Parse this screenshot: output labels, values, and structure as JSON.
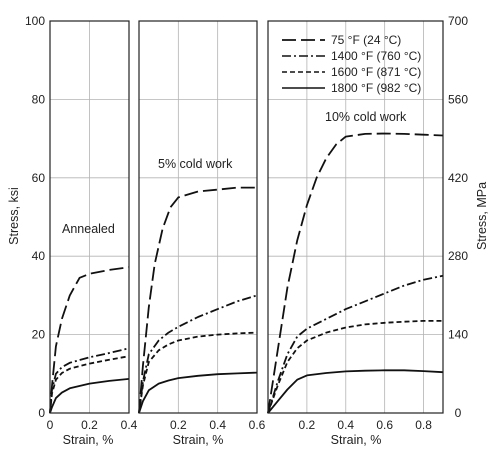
{
  "chart_data": {
    "type": "line",
    "ylabel_left": "Stress, ksi",
    "ylabel_right": "Stress, MPa",
    "y_ticks_left": [
      "0",
      "20",
      "40",
      "60",
      "80",
      "100"
    ],
    "y_ticks_right": [
      "0",
      "140",
      "280",
      "420",
      "560",
      "700"
    ],
    "ylim_ksi": [
      0,
      100
    ],
    "ylim_mpa": [
      0,
      700
    ],
    "grid": true,
    "legend_position": "top-right",
    "legend": [
      {
        "label": "75 °F (24 °C)",
        "style": "long-dash"
      },
      {
        "label": "1400 °F (760 °C)",
        "style": "dash-dot"
      },
      {
        "label": "1600 °F (871 °C)",
        "style": "short-dash"
      },
      {
        "label": "1800 °F (982 °C)",
        "style": "solid"
      }
    ],
    "panels": [
      {
        "annotation": "Annealed",
        "xlabel": "Strain, %",
        "xlim": [
          0,
          0.4
        ],
        "x_ticks": [
          "0",
          "0.2",
          "0.4"
        ],
        "series": [
          {
            "style": "long-dash",
            "x": [
              0,
              0.01,
              0.03,
              0.06,
              0.1,
              0.15,
              0.2,
              0.3,
              0.4
            ],
            "y": [
              0,
              7,
              17,
              24,
              30,
              34.5,
              35.5,
              36.5,
              37.2
            ]
          },
          {
            "style": "dash-dot",
            "x": [
              0,
              0.01,
              0.03,
              0.06,
              0.1,
              0.2,
              0.3,
              0.4
            ],
            "y": [
              0,
              6,
              10,
              11.7,
              12.8,
              14.2,
              15.3,
              16.5
            ]
          },
          {
            "style": "short-dash",
            "x": [
              0,
              0.01,
              0.03,
              0.06,
              0.1,
              0.2,
              0.3,
              0.4
            ],
            "y": [
              0,
              5,
              8.5,
              10.2,
              11.3,
              12.6,
              13.6,
              14.5
            ]
          },
          {
            "style": "solid",
            "x": [
              0,
              0.01,
              0.03,
              0.06,
              0.1,
              0.2,
              0.3,
              0.4
            ],
            "y": [
              0,
              1.5,
              3.8,
              5.2,
              6.3,
              7.5,
              8.2,
              8.7
            ]
          }
        ]
      },
      {
        "annotation": "5% cold work",
        "xlabel": "Strain, %",
        "xlim": [
          0,
          0.6
        ],
        "x_ticks": [
          "0.2",
          "0.4",
          "0.6"
        ],
        "series": [
          {
            "style": "long-dash",
            "x": [
              0,
              0.02,
              0.05,
              0.08,
              0.12,
              0.16,
              0.2,
              0.3,
              0.4,
              0.5,
              0.6
            ],
            "y": [
              0,
              12,
              27,
              38,
              47,
              52.5,
              55,
              56.5,
              57,
              57.5,
              57.5
            ]
          },
          {
            "style": "dash-dot",
            "x": [
              0,
              0.02,
              0.05,
              0.1,
              0.15,
              0.2,
              0.3,
              0.4,
              0.5,
              0.6
            ],
            "y": [
              0,
              8,
              15,
              18.5,
              20.5,
              22,
              24.5,
              26.5,
              28.5,
              30
            ]
          },
          {
            "style": "short-dash",
            "x": [
              0,
              0.02,
              0.05,
              0.1,
              0.15,
              0.2,
              0.3,
              0.4,
              0.5,
              0.6
            ],
            "y": [
              0,
              7,
              13,
              16,
              17.5,
              18.5,
              19.5,
              20,
              20.3,
              20.5
            ]
          },
          {
            "style": "solid",
            "x": [
              0,
              0.02,
              0.05,
              0.1,
              0.15,
              0.2,
              0.3,
              0.4,
              0.5,
              0.6
            ],
            "y": [
              0,
              3,
              5.8,
              7.5,
              8.3,
              8.9,
              9.5,
              9.9,
              10.1,
              10.3
            ]
          }
        ]
      },
      {
        "annotation": "10% cold work",
        "xlabel": "Strain, %",
        "xlim": [
          0,
          0.9
        ],
        "x_ticks": [
          "0.2",
          "0.4",
          "0.6",
          "0.8"
        ],
        "series": [
          {
            "style": "long-dash",
            "x": [
              0,
              0.05,
              0.1,
              0.15,
              0.2,
              0.25,
              0.3,
              0.35,
              0.4,
              0.5,
              0.6,
              0.7,
              0.8,
              0.9
            ],
            "y": [
              0,
              16,
              32,
              44,
              53,
              60,
              65,
              68.5,
              70.5,
              71.2,
              71.3,
              71.2,
              71,
              70.8
            ]
          },
          {
            "style": "dash-dot",
            "x": [
              0,
              0.05,
              0.1,
              0.15,
              0.2,
              0.3,
              0.4,
              0.5,
              0.6,
              0.7,
              0.8,
              0.9
            ],
            "y": [
              0,
              8,
              15,
              19.5,
              21.5,
              24,
              26.5,
              28.5,
              30.5,
              32.5,
              34,
              35
            ]
          },
          {
            "style": "short-dash",
            "x": [
              0,
              0.05,
              0.1,
              0.15,
              0.2,
              0.3,
              0.4,
              0.5,
              0.6,
              0.7,
              0.8,
              0.9
            ],
            "y": [
              0,
              7,
              13,
              16.5,
              18.5,
              20.5,
              21.8,
              22.6,
              23,
              23.3,
              23.5,
              23.5
            ]
          },
          {
            "style": "solid",
            "x": [
              0,
              0.05,
              0.1,
              0.15,
              0.2,
              0.3,
              0.4,
              0.5,
              0.6,
              0.7,
              0.8,
              0.9
            ],
            "y": [
              0,
              3,
              6,
              8.5,
              9.6,
              10.2,
              10.6,
              10.8,
              10.9,
              10.9,
              10.7,
              10.4
            ]
          }
        ]
      }
    ]
  }
}
